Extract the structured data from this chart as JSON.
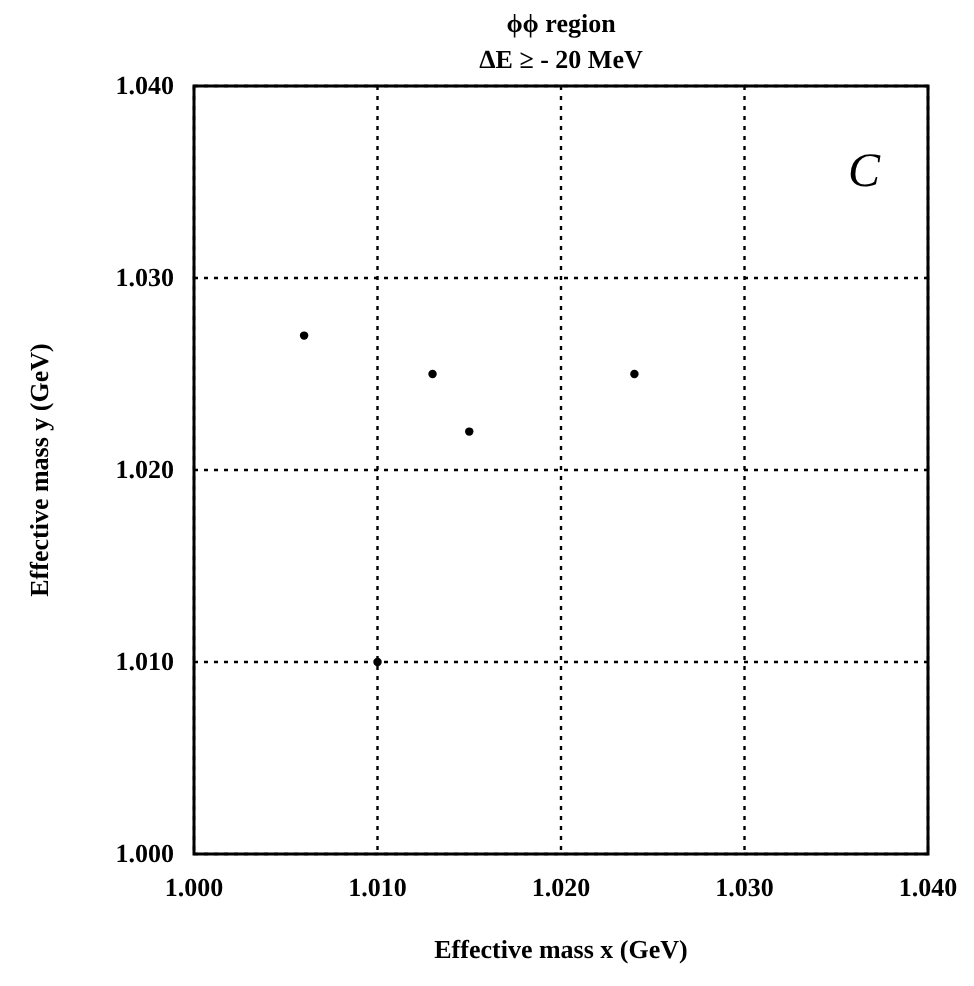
{
  "chart_data": {
    "type": "scatter",
    "title": "ϕϕ region",
    "subtitle": "ΔE ≥ - 20 MeV",
    "xlabel": "Effective mass x (GeV)",
    "ylabel": "Effective mass y (GeV)",
    "x": [
      1.006,
      1.01,
      1.013,
      1.015,
      1.024
    ],
    "values": [
      1.027,
      1.01,
      1.025,
      1.022,
      1.025
    ],
    "color": "#000000",
    "marker": "circle",
    "xlim": [
      1.0,
      1.04
    ],
    "xticks": [
      {
        "value": 1.0,
        "label": "1.000"
      },
      {
        "value": 1.01,
        "label": "1.010"
      },
      {
        "value": 1.02,
        "label": "1.020"
      },
      {
        "value": 1.03,
        "label": "1.030"
      },
      {
        "value": 1.04,
        "label": "1.040"
      }
    ],
    "ylim": [
      1.0,
      1.04
    ],
    "yticks": [
      {
        "value": 1.0,
        "label": "1.000"
      },
      {
        "value": 1.01,
        "label": "1.010"
      },
      {
        "value": 1.02,
        "label": "1.020"
      },
      {
        "value": 1.03,
        "label": "1.030"
      },
      {
        "value": 1.04,
        "label": "1.040"
      }
    ],
    "grid": true,
    "line_style": "dotted",
    "annotations": [
      "C"
    ]
  }
}
